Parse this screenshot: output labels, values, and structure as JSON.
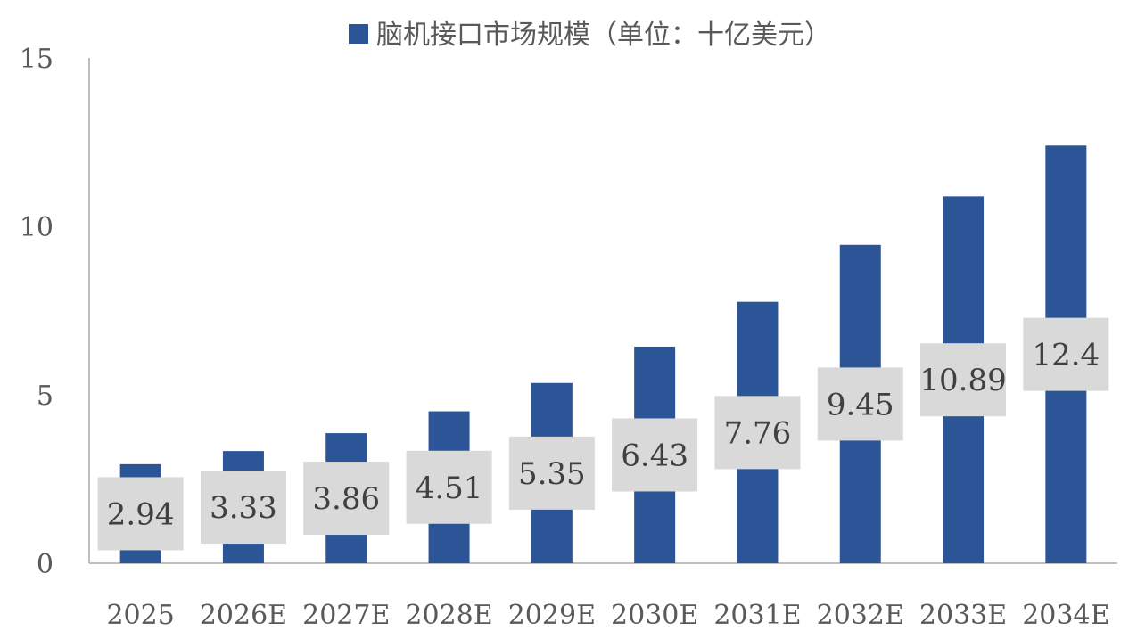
{
  "chart_data": {
    "type": "bar",
    "title": "",
    "xlabel": "",
    "ylabel": "",
    "legend": {
      "placement": "top",
      "entries": [
        "脑机接口市场规模（单位：十亿美元）"
      ]
    },
    "categories": [
      "2025",
      "2026E",
      "2027E",
      "2028E",
      "2029E",
      "2030E",
      "2031E",
      "2032E",
      "2033E",
      "2034E"
    ],
    "series": [
      {
        "name": "脑机接口市场规模（单位：十亿美元）",
        "values": [
          2.94,
          3.33,
          3.86,
          4.51,
          5.35,
          6.43,
          7.76,
          9.45,
          10.89,
          12.4
        ],
        "labels": [
          "2.94",
          "3.33",
          "3.86",
          "4.51",
          "5.35",
          "6.43",
          "7.76",
          "9.45",
          "10.89",
          "12.4"
        ]
      }
    ],
    "ylim": [
      0,
      15
    ],
    "yticks": [
      "0",
      "5",
      "10",
      "15"
    ],
    "grid": false,
    "colors": {
      "bar": "#2B5597",
      "data_label_bg": "#D9D9D9",
      "axis": "#BFBFBF"
    }
  }
}
